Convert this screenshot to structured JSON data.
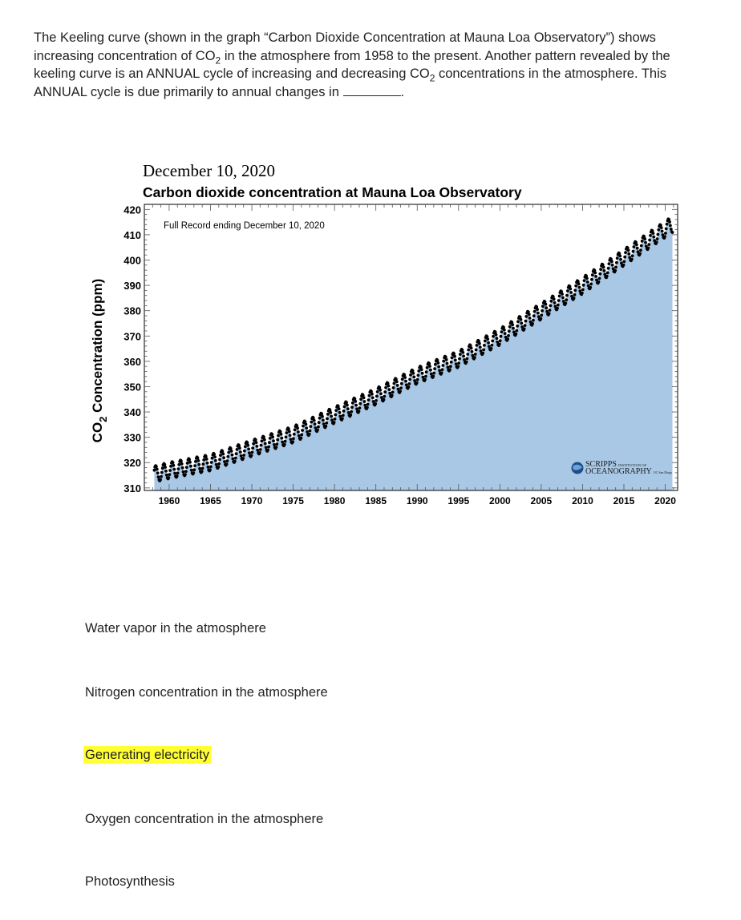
{
  "question": {
    "part1": "The Keeling curve (shown in the graph “Carbon Dioxide Concentration at Mauna Loa Observatory”) shows increasing concentration of CO",
    "sub": "2",
    "part2": " in the atmosphere from 1958 to the present. Another pattern revealed by the keeling curve is an ANNUAL cycle of increasing and decreasing CO",
    "part3": " concentrations in the atmosphere. This ANNUAL cycle is due primarily to annual changes in",
    "end": "."
  },
  "chart_data": {
    "type": "scatter",
    "date_title": "December 10, 2020",
    "title": "Carbon dioxide concentration at Mauna Loa Observatory",
    "annotation": "Full Record ending December 10, 2020",
    "ylabel_main": "CO",
    "ylabel_sub": "2",
    "ylabel_rest": " Concentration (ppm)",
    "ylim": [
      309,
      422
    ],
    "xlim": [
      1957,
      2021.5
    ],
    "yticks": [
      310,
      320,
      330,
      340,
      350,
      360,
      370,
      380,
      390,
      400,
      410,
      420
    ],
    "xticks": [
      1960,
      1965,
      1970,
      1975,
      1980,
      1985,
      1990,
      1995,
      2000,
      2005,
      2010,
      2015,
      2020
    ],
    "series": [
      {
        "x": [
          1958,
          1960,
          1965,
          1970,
          1975,
          1980,
          1985,
          1990,
          1995,
          2000,
          2005,
          2010,
          2015,
          2020.9
        ],
        "y": [
          315.3,
          316.9,
          320.0,
          325.7,
          331.1,
          338.8,
          346.1,
          354.4,
          360.9,
          369.7,
          379.8,
          389.9,
          401.0,
          414.2
        ]
      }
    ],
    "seasonal_amplitude": 3.2,
    "fill_color": "#a8c8e6",
    "marker_color": "#000000",
    "grid": false,
    "logo_line1": "SCRIPPS",
    "logo_line1_small": "INSTITUTION OF",
    "logo_line2": "OCEANOGRAPHY",
    "logo_line2_small": "UC San Diego"
  },
  "choices": [
    {
      "label": "Water vapor in the atmosphere",
      "selected": false
    },
    {
      "label": "Nitrogen concentration in the atmosphere",
      "selected": false
    },
    {
      "label": "Generating electricity",
      "selected": true
    },
    {
      "label": "Oxygen concentration in the atmosphere",
      "selected": false
    },
    {
      "label": "Photosynthesis",
      "selected": false
    }
  ],
  "highlight_color": "#ffff33"
}
